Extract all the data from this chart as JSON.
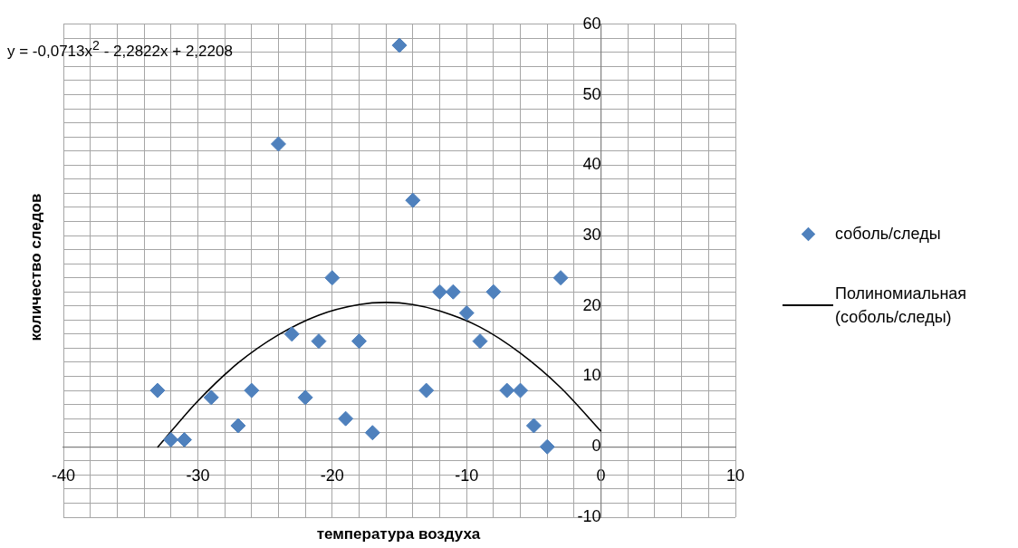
{
  "chart_data": {
    "type": "scatter",
    "xlabel": "температура воздуха",
    "ylabel": "количество следов",
    "annotations": [
      "y = -0,0713x$^{2}$ - 2,2822x + 2,2208"
    ],
    "xlim": [
      -40,
      10
    ],
    "ylim": [
      -10,
      60
    ],
    "xticks": [
      -40,
      {
        "value": -38,
        "label": null
      },
      {
        "value": -36,
        "label": null
      },
      {
        "value": -34,
        "label": null
      },
      {
        "value": -32,
        "label": null
      },
      -30,
      {
        "value": -28,
        "label": null
      },
      {
        "value": -26,
        "label": null
      },
      {
        "value": -24,
        "label": null
      },
      {
        "value": -22,
        "label": null
      },
      -20,
      {
        "value": -18,
        "label": null
      },
      {
        "value": -16,
        "label": null
      },
      {
        "value": -14,
        "label": null
      },
      {
        "value": -12,
        "label": null
      },
      -10,
      {
        "value": -8,
        "label": null
      },
      {
        "value": -6,
        "label": null
      },
      {
        "value": -4,
        "label": null
      },
      {
        "value": -2,
        "label": null
      },
      0,
      {
        "value": 2,
        "label": null
      },
      {
        "value": 4,
        "label": null
      },
      {
        "value": 6,
        "label": null
      },
      {
        "value": 8,
        "label": null
      },
      10
    ],
    "yticks": [
      -10,
      {
        "value": -8,
        "label": null
      },
      {
        "value": -6,
        "label": null
      },
      {
        "value": -4,
        "label": null
      },
      {
        "value": -2,
        "label": null
      },
      0,
      {
        "value": 2,
        "label": null
      },
      {
        "value": 4,
        "label": null
      },
      {
        "value": 6,
        "label": null
      },
      {
        "value": 8,
        "label": null
      },
      10,
      {
        "value": 12,
        "label": null
      },
      {
        "value": 14,
        "label": null
      },
      {
        "value": 16,
        "label": null
      },
      {
        "value": 18,
        "label": null
      },
      20,
      {
        "value": 22,
        "label": null
      },
      {
        "value": 24,
        "label": null
      },
      {
        "value": 26,
        "label": null
      },
      {
        "value": 28,
        "label": null
      },
      30,
      {
        "value": 32,
        "label": null
      },
      {
        "value": 34,
        "label": null
      },
      {
        "value": 36,
        "label": null
      },
      {
        "value": 38,
        "label": null
      },
      40,
      {
        "value": 42,
        "label": null
      },
      {
        "value": 44,
        "label": null
      },
      {
        "value": 46,
        "label": null
      },
      {
        "value": 48,
        "label": null
      },
      50,
      {
        "value": 52,
        "label": null
      },
      {
        "value": 54,
        "label": null
      },
      {
        "value": 56,
        "label": null
      },
      {
        "value": 58,
        "label": null
      },
      60
    ],
    "grid": true,
    "legend": "right",
    "series": [
      {
        "name": "соболь/следы",
        "marker": "diamond",
        "color": "#4f81bd",
        "x": [
          -33,
          -32,
          -31,
          -29,
          -27,
          -26,
          -24,
          -23,
          -22,
          -21,
          -20,
          -19,
          -18,
          -17,
          -15,
          -14,
          -13,
          -12,
          -11,
          -10,
          -9,
          -8,
          -7,
          -6,
          -5,
          -4,
          -3
        ],
        "values": [
          8,
          1,
          1,
          7,
          3,
          8,
          43,
          16,
          7,
          15,
          24,
          4,
          15,
          2,
          57,
          35,
          8,
          22,
          22,
          19,
          15,
          22,
          8,
          8,
          3,
          0,
          24
        ]
      },
      {
        "name": "Полиномиальная (соболь/следы)",
        "type": "line",
        "marker": "none",
        "color": "#000000",
        "x": [
          -33,
          -30,
          -27,
          -24,
          -21,
          -18,
          -16,
          -14,
          -12,
          -9,
          -6,
          -3,
          0
        ],
        "values": [
          -0.1,
          6.5,
          11.9,
          15.9,
          18.7,
          20.2,
          20.5,
          20.2,
          19.3,
          17.0,
          13.3,
          8.4,
          2.2
        ]
      }
    ]
  }
}
